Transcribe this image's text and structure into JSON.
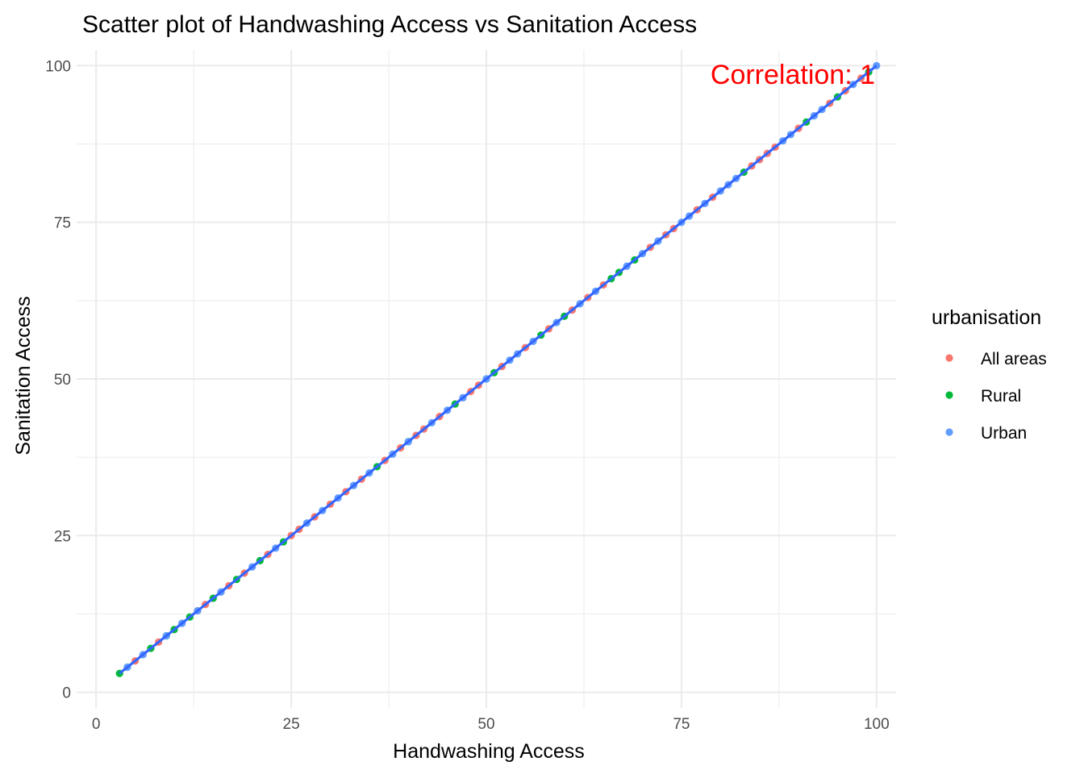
{
  "chart_data": {
    "type": "scatter",
    "title": "Scatter plot of Handwashing Access vs Sanitation Access",
    "xlabel": "Handwashing Access",
    "ylabel": "Sanitation Access",
    "xlim": [
      -2.5,
      102.5
    ],
    "ylim": [
      -2.5,
      102.5
    ],
    "x_ticks": [
      0,
      25,
      50,
      75,
      100
    ],
    "y_ticks": [
      0,
      25,
      50,
      75,
      100
    ],
    "grid": true,
    "legend": {
      "title": "urbanisation",
      "placement": "right",
      "entries": [
        "All areas",
        "Rural",
        "Urban"
      ]
    },
    "annotation": {
      "text": "Correlation:  1",
      "x": 100,
      "y": 100,
      "color": "#ff0000"
    },
    "fit_line": {
      "x": [
        3,
        100
      ],
      "y": [
        3,
        100
      ],
      "color": "#3366ff"
    },
    "series": [
      {
        "name": "All areas",
        "color": "#f8766d",
        "x": [
          5,
          6,
          8,
          10,
          11,
          13,
          14,
          16,
          17,
          19,
          22,
          25,
          26,
          28,
          30,
          32,
          34,
          37,
          39,
          41,
          42,
          44,
          47,
          48,
          49,
          52,
          55,
          58,
          61,
          63,
          65,
          71,
          73,
          74,
          77,
          79,
          84,
          85,
          86,
          87,
          90,
          94,
          96,
          98
        ],
        "y": [
          5,
          6,
          8,
          10,
          11,
          13,
          14,
          16,
          17,
          19,
          22,
          25,
          26,
          28,
          30,
          32,
          34,
          37,
          39,
          41,
          42,
          44,
          47,
          48,
          49,
          52,
          55,
          58,
          61,
          63,
          65,
          71,
          73,
          74,
          77,
          79,
          84,
          85,
          86,
          87,
          90,
          94,
          96,
          98
        ]
      },
      {
        "name": "Rural",
        "color": "#00ba38",
        "x": [
          3,
          4,
          7,
          9,
          10,
          12,
          15,
          18,
          21,
          24,
          36,
          40,
          46,
          50,
          51,
          57,
          60,
          66,
          67,
          69,
          83,
          91,
          95,
          99
        ],
        "y": [
          3,
          4,
          7,
          9,
          10,
          12,
          15,
          18,
          21,
          24,
          36,
          40,
          46,
          50,
          51,
          57,
          60,
          66,
          67,
          69,
          83,
          91,
          95,
          99
        ]
      },
      {
        "name": "Urban",
        "color": "#619cff",
        "x": [
          4,
          6,
          9,
          11,
          13,
          16,
          20,
          23,
          27,
          29,
          31,
          33,
          35,
          38,
          40,
          43,
          45,
          47,
          50,
          53,
          54,
          56,
          59,
          62,
          64,
          68,
          70,
          72,
          75,
          76,
          78,
          80,
          81,
          82,
          88,
          89,
          92,
          93,
          97,
          100
        ],
        "y": [
          4,
          6,
          9,
          11,
          13,
          16,
          20,
          23,
          27,
          29,
          31,
          33,
          35,
          38,
          40,
          43,
          45,
          47,
          50,
          53,
          54,
          56,
          59,
          62,
          64,
          68,
          70,
          72,
          75,
          76,
          78,
          80,
          81,
          82,
          88,
          89,
          92,
          93,
          97,
          100
        ]
      }
    ]
  }
}
